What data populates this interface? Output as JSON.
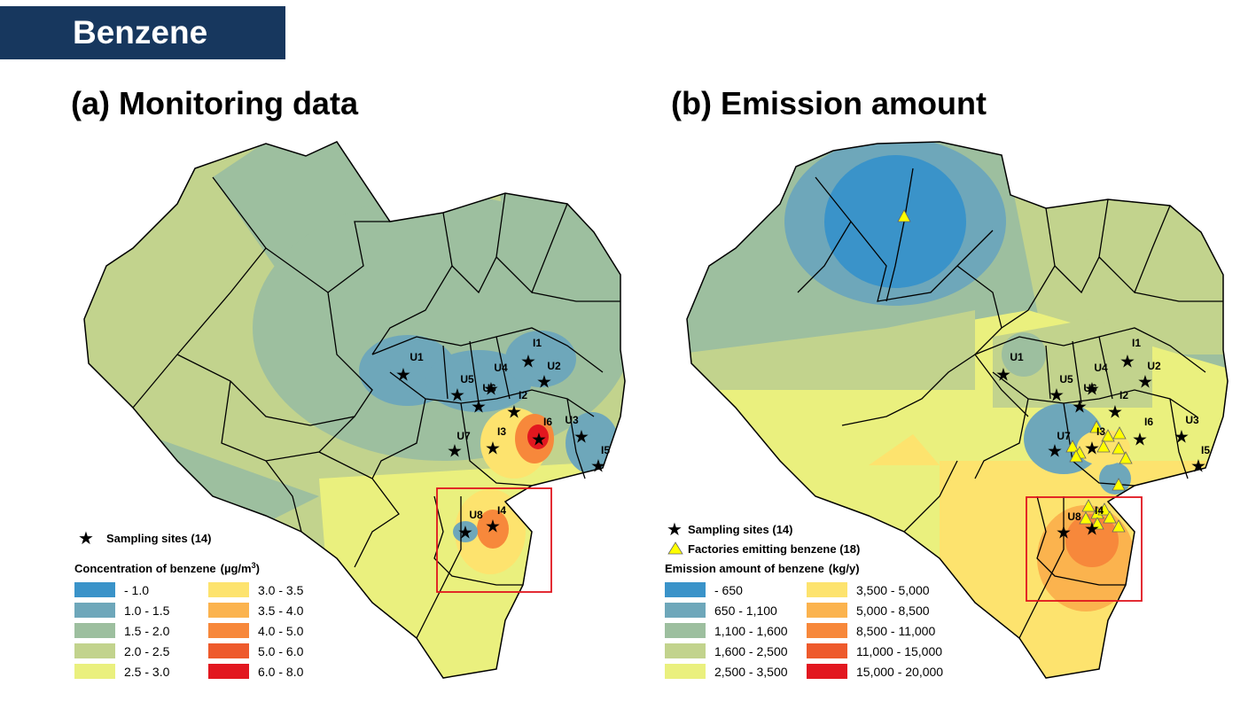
{
  "banner": {
    "title": "Benzene"
  },
  "panel_a": {
    "title": "(a) Monitoring data",
    "legend": {
      "sites_label": "Sampling sites (14)",
      "title": "Concentration of benzene",
      "unit_prefix": "(µg/m",
      "unit_exp": "3",
      "unit_suffix": ")",
      "classes": [
        {
          "label": " - 1.0",
          "color": "#3a93c9"
        },
        {
          "label": "1.0 - 1.5",
          "color": "#6ea7ba"
        },
        {
          "label": "1.5 - 2.0",
          "color": "#9dbf9f"
        },
        {
          "label": "2.0 - 2.5",
          "color": "#c2d38d"
        },
        {
          "label": "2.5 - 3.0",
          "color": "#eaf07e"
        },
        {
          "label": "3.0 - 3.5",
          "color": "#fde36e"
        },
        {
          "label": "3.5 - 4.0",
          "color": "#fbb34e"
        },
        {
          "label": "4.0 - 5.0",
          "color": "#f7883b"
        },
        {
          "label": "5.0 - 6.0",
          "color": "#ee5a2c"
        },
        {
          "label": "6.0 - 8.0",
          "color": "#e2171f"
        }
      ]
    },
    "site_labels": [
      "U1",
      "U2",
      "U3",
      "U4",
      "U5",
      "U6",
      "U7",
      "U8",
      "I1",
      "I2",
      "I3",
      "I4",
      "I5",
      "I6"
    ]
  },
  "panel_b": {
    "title": "(b) Emission amount",
    "legend": {
      "sites_label": "Sampling sites (14)",
      "factories_label": "Factories emitting benzene (18)",
      "title": "Emission amount of benzene",
      "unit": "(kg/y)",
      "classes": [
        {
          "label": " - 650",
          "color": "#3a93c9"
        },
        {
          "label": "650 - 1,100",
          "color": "#6ea7ba"
        },
        {
          "label": "1,100 - 1,600",
          "color": "#9dbf9f"
        },
        {
          "label": "1,600 - 2,500",
          "color": "#c2d38d"
        },
        {
          "label": "2,500 - 3,500",
          "color": "#eaf07e"
        },
        {
          "label": "3,500 - 5,000",
          "color": "#fde36e"
        },
        {
          "label": "5,000 - 8,500",
          "color": "#fbb34e"
        },
        {
          "label": "8,500 - 11,000",
          "color": "#f7883b"
        },
        {
          "label": "11,000 - 15,000",
          "color": "#ee5a2c"
        },
        {
          "label": "15,000 - 20,000",
          "color": "#e2171f"
        }
      ]
    },
    "site_labels": [
      "U1",
      "U2",
      "U3",
      "U4",
      "U5",
      "U6",
      "U7",
      "U8",
      "I1",
      "I2",
      "I3",
      "I4",
      "I5",
      "I6"
    ]
  }
}
